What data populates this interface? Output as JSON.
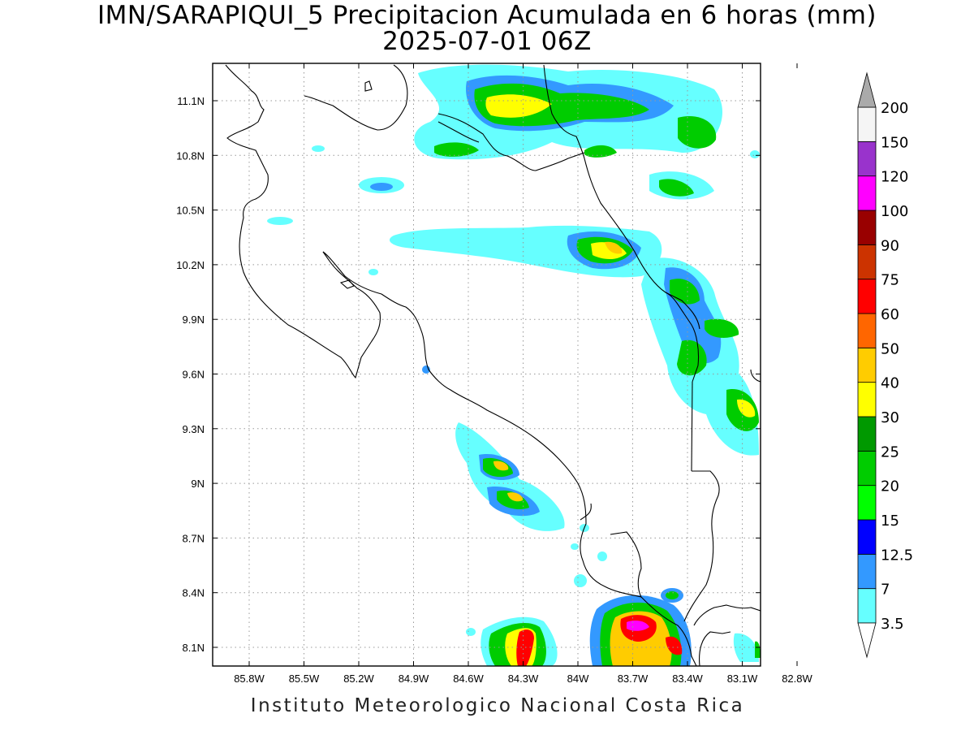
{
  "title": {
    "line1": "IMN/SARAPIQUI_5 Precipitacion Acumulada en 6 horas (mm)",
    "line2": "2025-07-01 06Z"
  },
  "footer": "Instituto Meteorologico Nacional Costa Rica",
  "map": {
    "lon_ticks": [
      "85.8W",
      "85.5W",
      "85.2W",
      "84.9W",
      "84.6W",
      "84.3W",
      "84W",
      "83.7W",
      "83.4W",
      "83.1W",
      "82.8W"
    ],
    "lat_ticks": [
      "11.1N",
      "10.8N",
      "10.5N",
      "10.2N",
      "9.9N",
      "9.6N",
      "9.3N",
      "9N",
      "8.7N",
      "8.4N",
      "8.1N"
    ],
    "grid": true
  },
  "colorbar": {
    "units": "mm",
    "levels": [
      "3.5",
      "7",
      "12.5",
      "15",
      "20",
      "25",
      "30",
      "40",
      "50",
      "60",
      "75",
      "90",
      "100",
      "120",
      "150",
      "200"
    ],
    "colors": [
      "#66ffff",
      "#3399ff",
      "#0000ff",
      "#00ff00",
      "#00cc00",
      "#009900",
      "#ffff00",
      "#ffcc00",
      "#ff6600",
      "#ff0000",
      "#cc3300",
      "#990000",
      "#ff00ff",
      "#9933cc",
      "#f5f5f5",
      "#aaaaaa"
    ]
  }
}
